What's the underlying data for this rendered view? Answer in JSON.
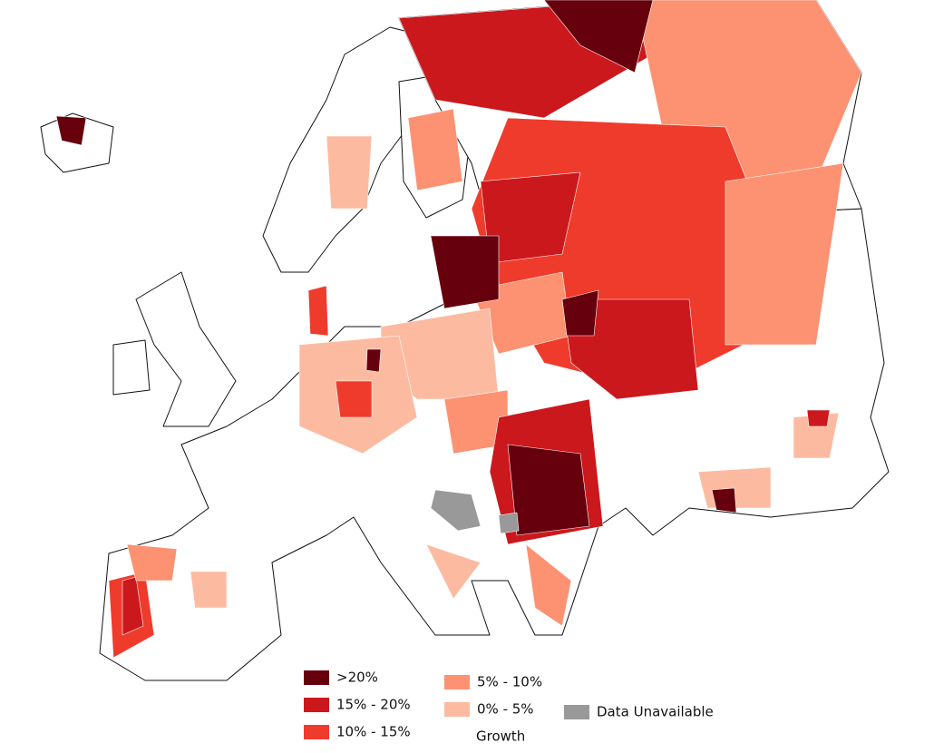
{
  "legend": {
    "title": "Growth",
    "items": [
      {
        "label": ">20%",
        "color": "#67000d"
      },
      {
        "label": "15% - 20%",
        "color": "#cb181d"
      },
      {
        "label": "10% - 15%",
        "color": "#ef3b2c"
      },
      {
        "label": "5% - 10%",
        "color": "#fc9272"
      },
      {
        "label": "0% - 5%",
        "color": "#fcbba1"
      },
      {
        "label": "Data Unavailable",
        "color": "#999999"
      }
    ]
  }
}
